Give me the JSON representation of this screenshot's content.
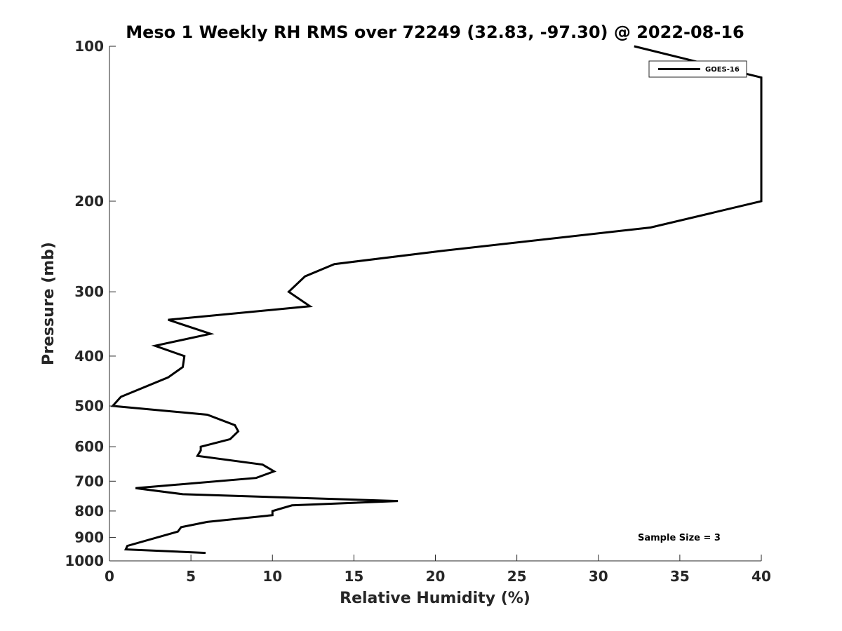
{
  "chart_data": {
    "type": "line",
    "title": "Meso 1 Weekly RH RMS over 72249 (32.83, -97.30) @ 2022-08-16",
    "xlabel": "Relative Humidity (%)",
    "ylabel": "Pressure (mb)",
    "xlim": [
      0,
      40
    ],
    "ylim": [
      100,
      1000
    ],
    "y_scale": "log",
    "y_reversed": true,
    "grid": false,
    "x_ticks": [
      "0",
      "5",
      "10",
      "15",
      "20",
      "25",
      "30",
      "35",
      "40"
    ],
    "y_ticks": [
      "100",
      "200",
      "300",
      "400",
      "500",
      "600",
      "700",
      "800",
      "900",
      "1000"
    ],
    "legend": {
      "position": "top-right",
      "entries": [
        "GOES-16"
      ]
    },
    "annotation": "Sample Size = 3",
    "series": [
      {
        "name": "GOES-16",
        "color": "#000000",
        "x": [
          32.2,
          40,
          40,
          33.2,
          20.3,
          13.8,
          12.0,
          11.0,
          12.3,
          3.6,
          6.2,
          2.8,
          4.6,
          4.5,
          3.6,
          0.7,
          0.2,
          6.0,
          7.7,
          7.9,
          7.4,
          5.6,
          5.6,
          5.4,
          9.4,
          10.1,
          9.0,
          1.6,
          4.5,
          17.7,
          11.2,
          10.0,
          10.0,
          6.0,
          4.4,
          4.2,
          1.1,
          1.0,
          5.9
        ],
        "y": [
          100,
          115,
          200,
          225,
          250,
          265,
          280,
          300,
          320,
          340,
          362,
          382,
          400,
          420,
          440,
          480,
          500,
          520,
          545,
          560,
          580,
          600,
          610,
          625,
          650,
          670,
          690,
          722,
          742,
          765,
          780,
          800,
          815,
          840,
          860,
          877,
          935,
          950,
          965
        ]
      }
    ]
  }
}
